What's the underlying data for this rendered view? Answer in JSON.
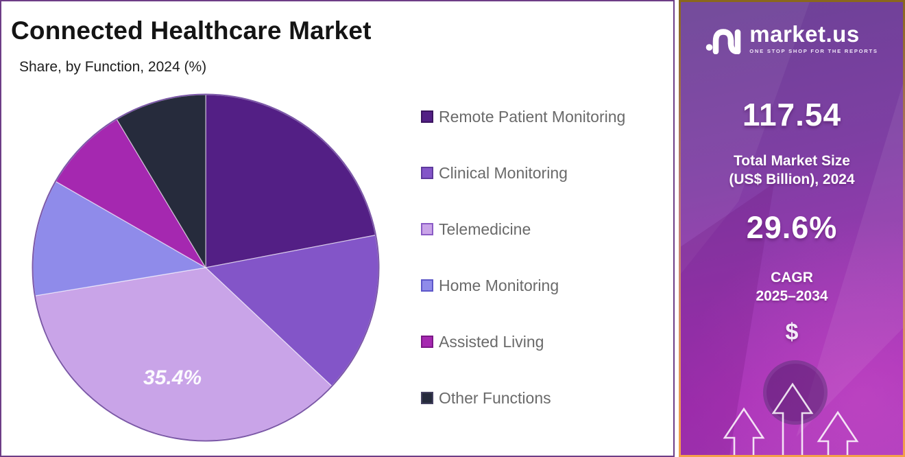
{
  "header": {
    "title": "Connected Healthcare Market",
    "subtitle": "Share, by Function, 2024 (%)"
  },
  "chart_data": {
    "type": "pie",
    "title": "Connected Healthcare Market",
    "subtitle": "Share, by Function, 2024 (%)",
    "direction": "clockwise",
    "start_angle_deg_from_12": 0,
    "legend_position": "right",
    "labeled_slice": {
      "label": "Telemedicine",
      "text": "35.4%"
    },
    "slices": [
      {
        "label": "Remote Patient Monitoring",
        "value": 22.0,
        "color": "#531F85",
        "border": "#3B1460"
      },
      {
        "label": "Clinical Monitoring",
        "value": 15.0,
        "color": "#8355C8",
        "border": "#5E3A9C"
      },
      {
        "label": "Telemedicine",
        "value": 35.4,
        "color": "#C9A4E8",
        "border": "#8A5BC5"
      },
      {
        "label": "Home Monitoring",
        "value": 10.9,
        "color": "#8F8BEA",
        "border": "#5D57C9"
      },
      {
        "label": "Assisted Living",
        "value": 8.1,
        "color": "#A528B0",
        "border": "#7C1787"
      },
      {
        "label": "Other Functions",
        "value": 8.6,
        "color": "#262B3C",
        "border": "#44415F"
      }
    ]
  },
  "side_panel": {
    "logo": {
      "brand": "market.us",
      "tagline": "ONE STOP SHOP FOR THE REPORTS"
    },
    "market_size": {
      "value": "117.54",
      "label_line1": "Total Market Size",
      "label_line2": "(US$ Billion), 2024"
    },
    "cagr": {
      "value": "29.6%",
      "label_line1": "CAGR",
      "label_line2": "2025–2034"
    },
    "dollar_symbol": "$"
  },
  "colors": {
    "left_border": "#6D3D86",
    "pie_outline": "#7C58A8",
    "legend_text": "#6A6A6A",
    "panel_border_top": "#8A671C",
    "panel_border_bottom": "#F5A04A",
    "panel_gradient_top": "#6C4296",
    "panel_gradient_bottom": "#AB3BBB"
  }
}
